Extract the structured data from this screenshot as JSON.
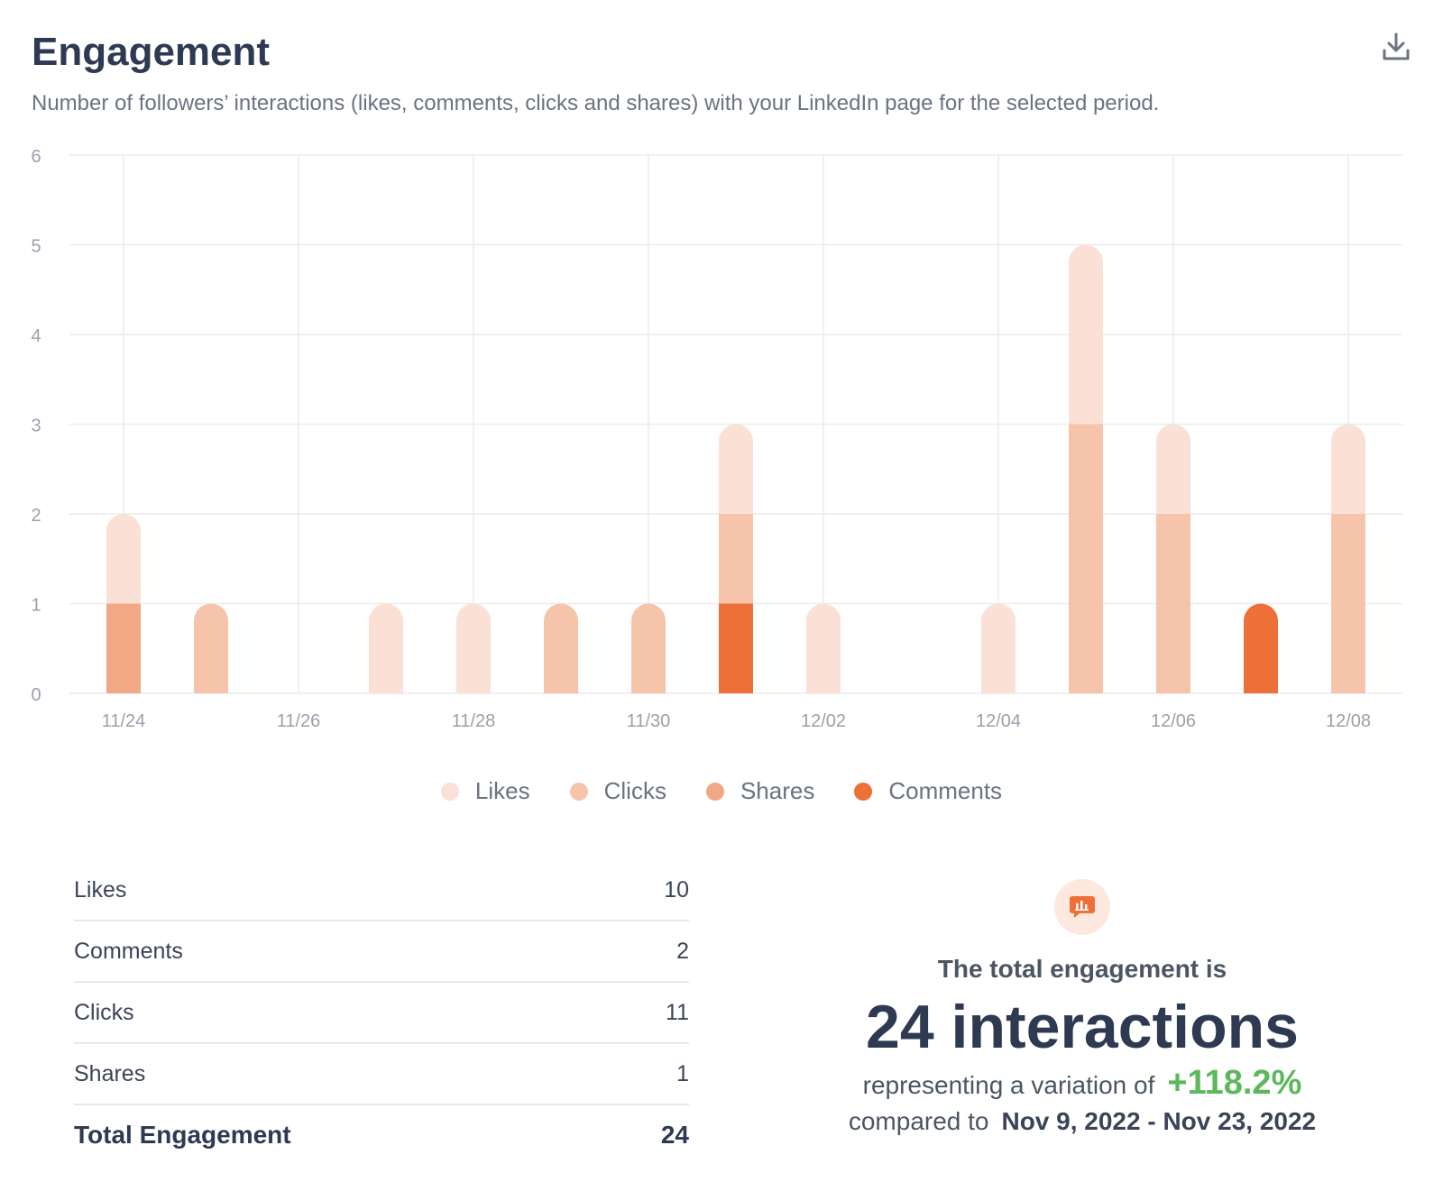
{
  "header": {
    "title": "Engagement",
    "subtitle": "Number of followers’ interactions (likes, comments, clicks and shares) with your LinkedIn page for the selected period.",
    "download_icon": "download-icon"
  },
  "colors": {
    "likes": "#fbe0d5",
    "clicks": "#f5c4ab",
    "shares": "#f0a885",
    "comments": "#ed7039",
    "grid": "#ececef",
    "axis_text": "#9aa0aa"
  },
  "chart_data": {
    "type": "bar",
    "stacked": true,
    "title": "",
    "xlabel": "",
    "ylabel": "",
    "ylim": [
      0,
      6
    ],
    "yticks": [
      0,
      1,
      2,
      3,
      4,
      5,
      6
    ],
    "grid": true,
    "legend_position": "bottom",
    "categories": [
      "11/24",
      "11/25",
      "11/26",
      "11/27",
      "11/28",
      "11/29",
      "11/30",
      "12/01",
      "12/02",
      "12/03",
      "12/04",
      "12/05",
      "12/06",
      "12/07",
      "12/08"
    ],
    "x_tick_labels": [
      "11/24",
      "11/26",
      "11/28",
      "11/30",
      "12/02",
      "12/04",
      "12/06",
      "12/08"
    ],
    "series": [
      {
        "name": "Comments",
        "values": [
          0,
          0,
          0,
          0,
          0,
          0,
          0,
          1,
          0,
          0,
          0,
          0,
          0,
          1,
          0
        ]
      },
      {
        "name": "Shares",
        "values": [
          1,
          0,
          0,
          0,
          0,
          0,
          0,
          0,
          0,
          0,
          0,
          0,
          0,
          0,
          0
        ]
      },
      {
        "name": "Clicks",
        "values": [
          0,
          1,
          0,
          0,
          0,
          1,
          1,
          1,
          0,
          0,
          0,
          3,
          2,
          0,
          2
        ]
      },
      {
        "name": "Likes",
        "values": [
          1,
          0,
          0,
          1,
          1,
          0,
          0,
          1,
          1,
          0,
          1,
          2,
          1,
          0,
          1
        ]
      }
    ]
  },
  "legend": [
    {
      "label": "Likes",
      "color": "#fbe0d5"
    },
    {
      "label": "Clicks",
      "color": "#f5c4ab"
    },
    {
      "label": "Shares",
      "color": "#f0a885"
    },
    {
      "label": "Comments",
      "color": "#ed7039"
    }
  ],
  "summary": {
    "rows": [
      {
        "label": "Likes",
        "value": "10"
      },
      {
        "label": "Comments",
        "value": "2"
      },
      {
        "label": "Clicks",
        "value": "11"
      },
      {
        "label": "Shares",
        "value": "1"
      }
    ],
    "total_label": "Total Engagement",
    "total_value": "24"
  },
  "total_panel": {
    "icon": "chat-chart-icon",
    "intro": "The total engagement is",
    "big": "24 interactions",
    "variation_prefix": "representing a variation of",
    "variation": "+118.2%",
    "compare_prefix": "compared to",
    "compare_range": "Nov 9, 2022 - Nov 23, 2022"
  }
}
